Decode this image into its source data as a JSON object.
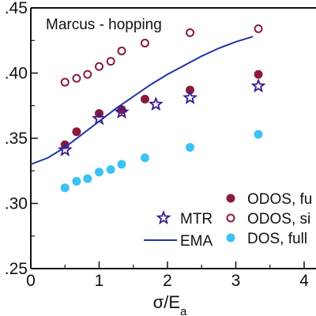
{
  "chart_data": {
    "type": "scatter",
    "annotation": "Marcus - hopping",
    "xlabel_main": "σ/E",
    "xlabel_sub": "a",
    "ylabel": "",
    "xlim": [
      0,
      4.0
    ],
    "ylim": [
      0.25,
      0.45
    ],
    "x_ticks": [
      0,
      1,
      2,
      3,
      4
    ],
    "x_tick_labels": [
      "0",
      "1",
      "2",
      "3",
      "4"
    ],
    "y_ticks": [
      0.25,
      0.3,
      0.35,
      0.4,
      0.45
    ],
    "y_tick_labels": [
      ".25",
      ".30",
      ".35",
      ".40",
      ".45"
    ],
    "series": [
      {
        "key": "odos_full",
        "name": "ODOS, fu",
        "marker": "filled-circle",
        "color": "#8b1a3c",
        "x": [
          0.5,
          0.67,
          1.0,
          1.33,
          1.67,
          2.33,
          3.33
        ],
        "y": [
          0.345,
          0.355,
          0.369,
          0.372,
          0.38,
          0.387,
          0.399
        ]
      },
      {
        "key": "odos_si",
        "name": "ODOS, si",
        "marker": "open-circle",
        "color": "#8b1a3c",
        "x": [
          0.5,
          0.67,
          0.83,
          1.0,
          1.17,
          1.33,
          1.67,
          2.33,
          3.33
        ],
        "y": [
          0.393,
          0.396,
          0.399,
          0.405,
          0.409,
          0.417,
          0.423,
          0.431,
          0.434
        ]
      },
      {
        "key": "dos_full",
        "name": "DOS, full",
        "marker": "filled-circle",
        "color": "#3ec1f3",
        "x": [
          0.5,
          0.67,
          0.83,
          1.0,
          1.17,
          1.33,
          1.67,
          2.33,
          3.33
        ],
        "y": [
          0.312,
          0.317,
          0.319,
          0.324,
          0.326,
          0.33,
          0.335,
          0.343,
          0.353
        ]
      },
      {
        "key": "mtr",
        "name": "MTR",
        "marker": "open-star",
        "color": "#3a1a8f",
        "x": [
          0.5,
          1.0,
          1.33,
          1.83,
          2.33,
          3.33
        ],
        "y": [
          0.341,
          0.365,
          0.37,
          0.376,
          0.381,
          0.39
        ]
      },
      {
        "key": "ema",
        "name": "EMA",
        "marker": "line",
        "color": "#2233aa",
        "x": [
          0.0,
          0.25,
          0.5,
          0.75,
          1.0,
          1.25,
          1.5,
          1.75,
          2.0,
          2.25,
          2.5,
          2.75,
          3.0,
          3.25
        ],
        "y": [
          0.33,
          0.335,
          0.343,
          0.353,
          0.363,
          0.373,
          0.382,
          0.391,
          0.399,
          0.406,
          0.413,
          0.419,
          0.424,
          0.428
        ]
      }
    ],
    "legend_left": [
      "mtr",
      "ema"
    ],
    "legend_right": [
      "odos_full",
      "odos_si",
      "dos_full"
    ],
    "legend_position": "bottom-right",
    "grid": false
  }
}
